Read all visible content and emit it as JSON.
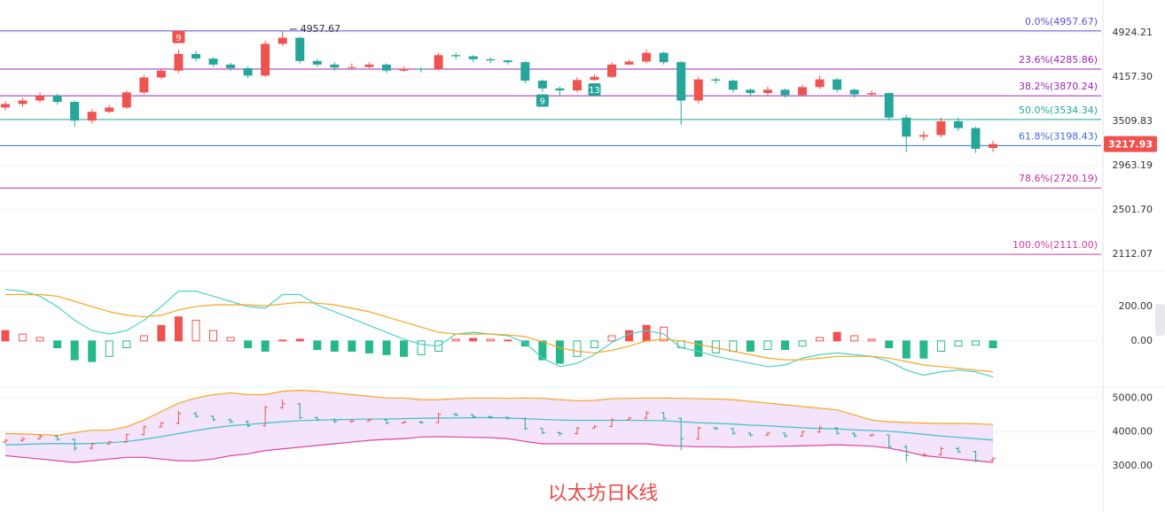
{
  "chart_data": [
    {
      "type": "candlestick",
      "title": "以太坊日K线",
      "log": true,
      "ylim": [
        2021,
        5580
      ],
      "yticks": [
        4924.21,
        {
          "value": 4157.3,
          "label": "4157.30"
        },
        3509.83,
        2963.19,
        {
          "value": 2501.7,
          "label": "2501.70"
        },
        2112.07
      ],
      "up_color": "#ef5350",
      "down_color": "#26a69a",
      "annotations": [
        "9",
        "9",
        "13"
      ],
      "fib": [
        {
          "label": "0.0%(4957.67)",
          "value": 4957.67,
          "color": "#5b4fd6"
        },
        {
          "label": "23.6%(4285.86)",
          "value": 4285.86,
          "color": "#9c27b0"
        },
        {
          "label": "38.2%(3870.24)",
          "value": 3870.24,
          "color": "#9c27b0"
        },
        {
          "label": "50.0%(3534.34)",
          "value": 3534.34,
          "color": "#26a69a"
        },
        {
          "label": "61.8%(3198.43)",
          "value": 3198.43,
          "color": "#3f6fd8"
        },
        {
          "label": "78.6%(2720.19)",
          "value": 2720.19,
          "color": "#c2309a"
        },
        {
          "label": "100.0%(2111.00)",
          "value": 2111,
          "color": "#d63aa0"
        }
      ],
      "open": [
        3700,
        3750,
        3800,
        3870,
        3780,
        3520,
        3640,
        3700,
        3920,
        4150,
        4260,
        4540,
        4460,
        4360,
        4300,
        4180,
        4720,
        4830,
        4420,
        4360,
        4310,
        4320,
        4360,
        4260,
        4290,
        4280,
        4520,
        4500,
        4450,
        4430,
        4400,
        4100,
        3980,
        3950,
        4110,
        4160,
        4360,
        4410,
        4560,
        4400,
        3800,
        4120,
        4100,
        3960,
        3910,
        3960,
        3880,
        4000,
        4120,
        3960,
        3890,
        3910,
        3560,
        3310,
        3330,
        3510,
        3420,
        3170
      ],
      "high": [
        3790,
        3840,
        3920,
        3900,
        3800,
        3680,
        3740,
        3950,
        4190,
        4300,
        4620,
        4600,
        4480,
        4390,
        4330,
        4780,
        4957.67,
        4850,
        4450,
        4400,
        4380,
        4400,
        4380,
        4330,
        4320,
        4560,
        4560,
        4520,
        4480,
        4440,
        4420,
        4120,
        4010,
        4150,
        4200,
        4400,
        4440,
        4620,
        4580,
        4420,
        4160,
        4150,
        4120,
        3980,
        4010,
        3980,
        4040,
        4180,
        4140,
        3980,
        3950,
        3920,
        3600,
        3380,
        3560,
        3560,
        3440,
        3260
      ],
      "low": [
        3660,
        3710,
        3770,
        3740,
        3440,
        3480,
        3620,
        3680,
        3890,
        4120,
        4220,
        4420,
        4320,
        4250,
        4140,
        4160,
        4680,
        4380,
        4320,
        4260,
        4270,
        4300,
        4220,
        4240,
        4230,
        4260,
        4450,
        4400,
        4380,
        4360,
        4060,
        3930,
        3880,
        3920,
        4100,
        4140,
        4350,
        4380,
        4360,
        3460,
        3760,
        4050,
        3920,
        3860,
        3880,
        3840,
        3860,
        3970,
        3920,
        3840,
        3870,
        3520,
        3120,
        3260,
        3300,
        3380,
        3110,
        3120
      ],
      "close": [
        3750,
        3800,
        3870,
        3780,
        3520,
        3640,
        3700,
        3920,
        4150,
        4260,
        4540,
        4460,
        4360,
        4300,
        4180,
        4720,
        4830,
        4420,
        4360,
        4310,
        4320,
        4360,
        4260,
        4290,
        4280,
        4520,
        4500,
        4450,
        4430,
        4400,
        4100,
        3980,
        3950,
        4110,
        4160,
        4360,
        4410,
        4560,
        4400,
        3800,
        4120,
        4100,
        3960,
        3910,
        3960,
        3880,
        4000,
        4120,
        3960,
        3890,
        3910,
        3560,
        3310,
        3330,
        3510,
        3420,
        3160,
        3217.93
      ]
    },
    {
      "type": "macd",
      "ylim": [
        -300,
        350
      ],
      "yticks": [
        {
          "value": 200,
          "label": "200.00"
        },
        {
          "value": 0,
          "label": "0.00"
        }
      ],
      "series": [
        {
          "color": "#4dd0c4",
          "values": [
            300,
            290,
            260,
            200,
            120,
            60,
            40,
            60,
            120,
            200,
            290,
            290,
            260,
            230,
            200,
            190,
            270,
            270,
            210,
            170,
            130,
            90,
            50,
            10,
            -20,
            -30,
            40,
            50,
            40,
            30,
            -10,
            -100,
            -150,
            -130,
            -80,
            -10,
            40,
            60,
            40,
            -40,
            -60,
            -90,
            -110,
            -130,
            -150,
            -140,
            -100,
            -80,
            -70,
            -80,
            -90,
            -120,
            -170,
            -200,
            -180,
            -170,
            -180,
            -210
          ]
        },
        {
          "color": "#f5a623",
          "values": [
            270,
            270,
            270,
            260,
            230,
            200,
            170,
            150,
            140,
            150,
            180,
            200,
            210,
            210,
            210,
            205,
            215,
            225,
            220,
            210,
            190,
            170,
            140,
            110,
            80,
            50,
            40,
            40,
            40,
            35,
            25,
            -5,
            -40,
            -60,
            -70,
            -55,
            -30,
            0,
            10,
            0,
            -20,
            -40,
            -60,
            -80,
            -100,
            -110,
            -110,
            -100,
            -90,
            -90,
            -90,
            -100,
            -120,
            -140,
            -150,
            -160,
            -170,
            -180
          ]
        }
      ],
      "hist": [
        60,
        40,
        20,
        -40,
        -110,
        -120,
        -90,
        -40,
        30,
        90,
        140,
        120,
        60,
        20,
        -40,
        -60,
        5,
        10,
        -50,
        -60,
        -60,
        -70,
        -80,
        -90,
        -80,
        -60,
        10,
        15,
        10,
        5,
        -30,
        -110,
        -130,
        -90,
        -40,
        30,
        60,
        90,
        80,
        -40,
        -90,
        -70,
        -60,
        -60,
        -50,
        -50,
        -30,
        20,
        50,
        30,
        10,
        -40,
        -100,
        -100,
        -60,
        -30,
        -25,
        -40
      ]
    },
    {
      "type": "bollinger",
      "ylim": [
        2500,
        5400
      ],
      "yticks": [
        {
          "value": 5000,
          "label": "5000.00"
        },
        {
          "value": 4000,
          "label": "4000.00"
        },
        {
          "value": 3000,
          "label": "3000.00"
        }
      ],
      "series": [
        {
          "color": "#f5a623",
          "values": [
            3950,
            3940,
            3920,
            3900,
            3980,
            4050,
            4050,
            4150,
            4350,
            4600,
            4850,
            5000,
            5100,
            5150,
            5100,
            5100,
            5200,
            5230,
            5200,
            5150,
            5100,
            5050,
            5000,
            5000,
            4950,
            4950,
            4980,
            5000,
            5000,
            4990,
            5000,
            4990,
            4950,
            4920,
            4930,
            4980,
            4990,
            5000,
            5000,
            4990,
            4980,
            4970,
            4950,
            4900,
            4850,
            4800,
            4750,
            4700,
            4650,
            4500,
            4350,
            4300,
            4280,
            4260,
            4250,
            4250,
            4240,
            4220
          ]
        },
        {
          "color": "#3cc0c8",
          "values": [
            3620,
            3630,
            3650,
            3660,
            3650,
            3660,
            3680,
            3720,
            3780,
            3860,
            3950,
            4040,
            4120,
            4180,
            4220,
            4260,
            4300,
            4330,
            4350,
            4360,
            4370,
            4380,
            4380,
            4390,
            4400,
            4410,
            4410,
            4420,
            4420,
            4410,
            4390,
            4370,
            4350,
            4340,
            4340,
            4340,
            4340,
            4340,
            4330,
            4300,
            4270,
            4250,
            4230,
            4200,
            4180,
            4150,
            4120,
            4100,
            4090,
            4060,
            4040,
            4020,
            3980,
            3930,
            3880,
            3840,
            3800,
            3760
          ]
        },
        {
          "color": "#e040a0",
          "values": [
            3300,
            3250,
            3200,
            3150,
            3100,
            3150,
            3200,
            3250,
            3250,
            3200,
            3150,
            3150,
            3200,
            3300,
            3350,
            3450,
            3500,
            3550,
            3600,
            3650,
            3700,
            3750,
            3780,
            3800,
            3850,
            3860,
            3850,
            3840,
            3830,
            3800,
            3720,
            3650,
            3650,
            3650,
            3650,
            3650,
            3650,
            3650,
            3600,
            3580,
            3560,
            3560,
            3550,
            3560,
            3570,
            3580,
            3590,
            3600,
            3620,
            3600,
            3580,
            3520,
            3420,
            3300,
            3250,
            3200,
            3150,
            3100
          ]
        }
      ]
    }
  ]
}
